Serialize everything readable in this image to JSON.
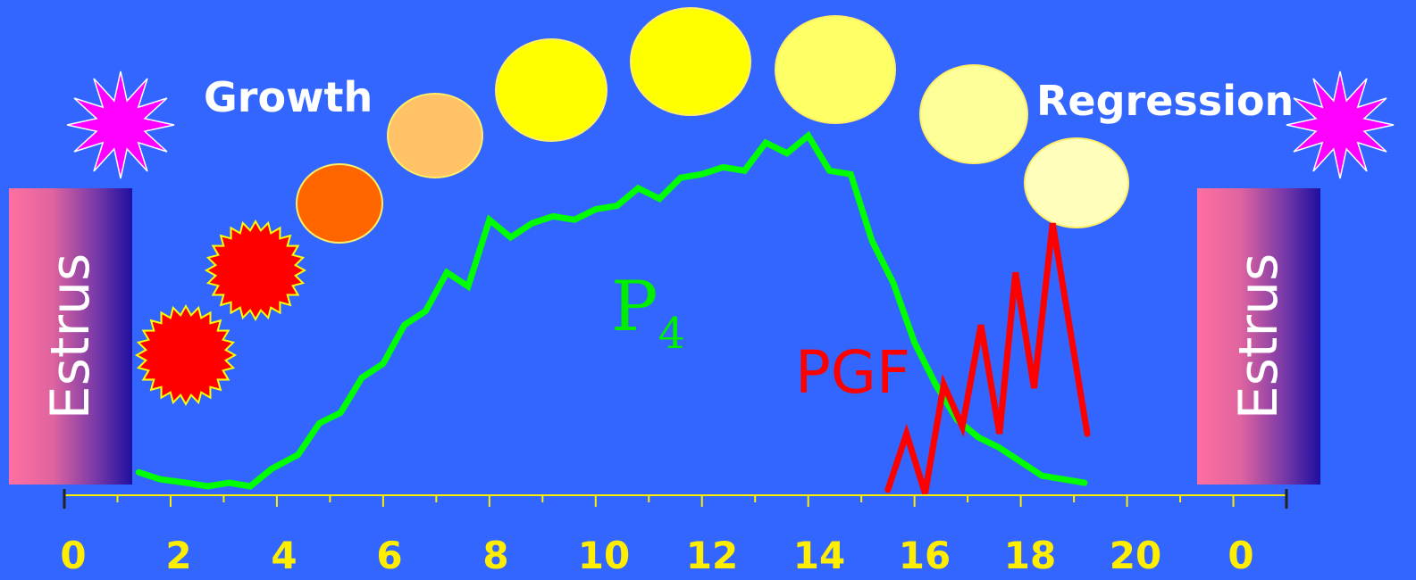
{
  "labels": {
    "growth": "Growth",
    "regression": "Regression",
    "estrus_left": "Estrus",
    "estrus_right": "Estrus",
    "p4_main": "P",
    "p4_sub": "4",
    "pgf": "PGF"
  },
  "colors": {
    "background": "#3366ff",
    "p4_line": "#00ff00",
    "pgf_line": "#ff0000",
    "axis": "#ffee00",
    "burst": "#ff00ff",
    "follicle": "#ff0000"
  },
  "chart_data": {
    "type": "line",
    "xlim": [
      0,
      23
    ],
    "ylim": [
      0,
      1
    ],
    "xticks": [
      "0",
      "2",
      "4",
      "6",
      "8",
      "10",
      "12",
      "14",
      "16",
      "18",
      "20",
      "0"
    ],
    "series": [
      {
        "name": "P4",
        "x": [
          1.4,
          1.8,
          2.3,
          2.7,
          3.1,
          3.5,
          3.9,
          4.4,
          4.8,
          5.2,
          5.6,
          6.0,
          6.4,
          6.8,
          7.2,
          7.6,
          8.0,
          8.4,
          8.8,
          9.2,
          9.6,
          10.0,
          10.4,
          10.8,
          11.2,
          11.6,
          12.0,
          12.4,
          12.8,
          13.2,
          13.6,
          14.0,
          14.4,
          14.8,
          15.2,
          15.6,
          16.0,
          16.4,
          16.8,
          17.2,
          17.6,
          18.0,
          18.4,
          18.8,
          19.2
        ],
        "values": [
          0.04,
          0.02,
          0.01,
          0.0,
          0.01,
          0.0,
          0.05,
          0.09,
          0.18,
          0.21,
          0.31,
          0.35,
          0.46,
          0.5,
          0.61,
          0.57,
          0.76,
          0.71,
          0.75,
          0.77,
          0.76,
          0.79,
          0.8,
          0.85,
          0.82,
          0.88,
          0.89,
          0.91,
          0.9,
          0.98,
          0.95,
          1.0,
          0.9,
          0.89,
          0.7,
          0.58,
          0.41,
          0.29,
          0.19,
          0.14,
          0.11,
          0.07,
          0.03,
          0.02,
          0.01
        ]
      },
      {
        "name": "PGF",
        "x": [
          15.5,
          15.85,
          16.2,
          16.55,
          16.9,
          17.25,
          17.6,
          17.9,
          18.25,
          18.6,
          19.25
        ],
        "values": [
          -0.01,
          0.15,
          -0.02,
          0.29,
          0.17,
          0.46,
          0.15,
          0.61,
          0.28,
          0.75,
          0.15
        ]
      }
    ]
  }
}
